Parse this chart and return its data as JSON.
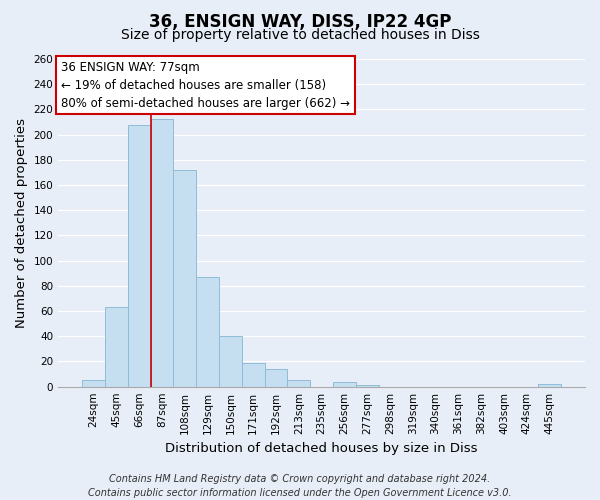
{
  "title": "36, ENSIGN WAY, DISS, IP22 4GP",
  "subtitle": "Size of property relative to detached houses in Diss",
  "xlabel": "Distribution of detached houses by size in Diss",
  "ylabel": "Number of detached properties",
  "bar_labels": [
    "24sqm",
    "45sqm",
    "66sqm",
    "87sqm",
    "108sqm",
    "129sqm",
    "150sqm",
    "171sqm",
    "192sqm",
    "213sqm",
    "235sqm",
    "256sqm",
    "277sqm",
    "298sqm",
    "319sqm",
    "340sqm",
    "361sqm",
    "382sqm",
    "403sqm",
    "424sqm",
    "445sqm"
  ],
  "bar_values": [
    5,
    63,
    208,
    212,
    172,
    87,
    40,
    19,
    14,
    5,
    0,
    4,
    1,
    0,
    0,
    0,
    0,
    0,
    0,
    0,
    2
  ],
  "bar_color": "#c5dff0",
  "bar_edge_color": "#90bcd8",
  "vline_color": "#cc0000",
  "ylim": [
    0,
    260
  ],
  "yticks": [
    0,
    20,
    40,
    60,
    80,
    100,
    120,
    140,
    160,
    180,
    200,
    220,
    240,
    260
  ],
  "annotation_title": "36 ENSIGN WAY: 77sqm",
  "annotation_line1": "← 19% of detached houses are smaller (158)",
  "annotation_line2": "80% of semi-detached houses are larger (662) →",
  "annotation_box_color": "#ffffff",
  "annotation_box_edge": "#cc0000",
  "footer_line1": "Contains HM Land Registry data © Crown copyright and database right 2024.",
  "footer_line2": "Contains public sector information licensed under the Open Government Licence v3.0.",
  "bg_color": "#e8eef8",
  "grid_color": "#ffffff",
  "title_fontsize": 12,
  "subtitle_fontsize": 10,
  "axis_label_fontsize": 9.5,
  "tick_fontsize": 7.5,
  "footer_fontsize": 7,
  "annotation_fontsize": 8.5
}
